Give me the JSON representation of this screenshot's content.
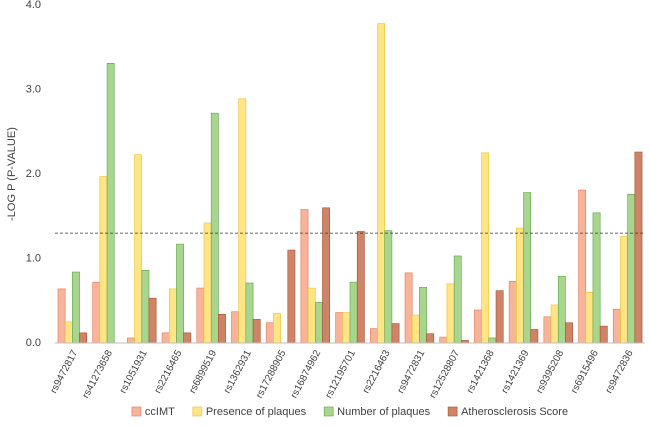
{
  "chart_data": {
    "type": "bar",
    "y_label": "-LOG P (P-VALUE)",
    "categories": [
      "rs9472817",
      "rs41273658",
      "rs1051931",
      "rs2216465",
      "rs6899519",
      "rs1362931",
      "rs17288905",
      "rs16874962",
      "rs12195701",
      "rs2216463",
      "rs9472831",
      "rs12528807",
      "rs1421368",
      "rs1421369",
      "rs9395208",
      "rs6915496",
      "rs9472836"
    ],
    "series": [
      {
        "name": "ccIMT",
        "color": "#f7b49a",
        "stroke": "#e07a5a",
        "values": [
          0.64,
          0.72,
          0.06,
          0.12,
          0.65,
          0.37,
          0.24,
          1.58,
          0.36,
          0.17,
          0.83,
          0.07,
          0.39,
          0.73,
          0.31,
          1.81,
          0.4
        ]
      },
      {
        "name": "Presence of plaques",
        "color": "#ffe585",
        "stroke": "#e8c22a",
        "values": [
          0.25,
          1.97,
          2.23,
          0.64,
          1.42,
          2.89,
          0.35,
          0.65,
          0.36,
          3.78,
          0.33,
          0.7,
          2.25,
          1.36,
          0.45,
          0.6,
          1.26
        ]
      },
      {
        "name": "Number of plaques",
        "color": "#a9d68f",
        "stroke": "#5fa244",
        "values": [
          0.84,
          3.31,
          0.86,
          1.17,
          2.72,
          0.71,
          0.0,
          0.48,
          0.72,
          1.33,
          0.66,
          1.03,
          0.06,
          1.78,
          0.79,
          1.54,
          1.76
        ]
      },
      {
        "name": "Atherosclerosis Score",
        "color": "#cf8468",
        "stroke": "#a4502f",
        "values": [
          0.12,
          0.0,
          0.53,
          0.12,
          0.34,
          0.28,
          1.1,
          1.6,
          1.32,
          0.23,
          0.11,
          0.03,
          0.62,
          0.16,
          0.24,
          0.2,
          2.26
        ]
      }
    ],
    "threshold": 1.3,
    "ylim": [
      0,
      4
    ],
    "yticks": [
      {
        "value": 0,
        "label": "0.0"
      },
      {
        "value": 1,
        "label": "1.0"
      },
      {
        "value": 2,
        "label": "2.0"
      },
      {
        "value": 3,
        "label": "3.0"
      },
      {
        "value": 4,
        "label": "4.0"
      }
    ],
    "grid": false
  }
}
